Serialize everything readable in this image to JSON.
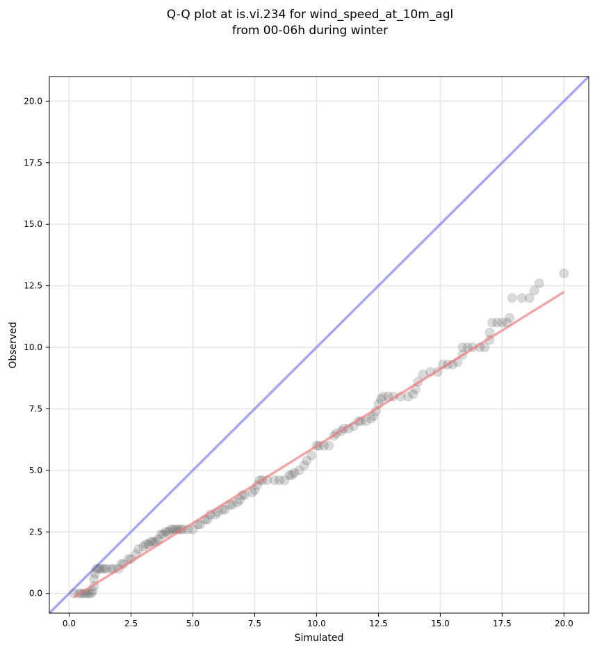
{
  "chart_data": {
    "type": "scatter",
    "title": [
      "Q-Q plot at is.vi.234 for wind_speed_at_10m_agl",
      "from 00-06h during winter"
    ],
    "xlabel": "Simulated",
    "ylabel": "Observed",
    "xlim": [
      -0.8,
      21.0
    ],
    "ylim": [
      -0.8,
      21.0
    ],
    "xticks": [
      0.0,
      2.5,
      5.0,
      7.5,
      10.0,
      12.5,
      15.0,
      17.5,
      20.0
    ],
    "xtick_labels": [
      "0.0",
      "2.5",
      "5.0",
      "7.5",
      "10.0",
      "12.5",
      "15.0",
      "17.5",
      "20.0"
    ],
    "yticks": [
      0.0,
      2.5,
      5.0,
      7.5,
      10.0,
      12.5,
      15.0,
      17.5,
      20.0
    ],
    "ytick_labels": [
      "0.0",
      "2.5",
      "5.0",
      "7.5",
      "10.0",
      "12.5",
      "15.0",
      "17.5",
      "20.0"
    ],
    "grid": true,
    "legend": "none",
    "colors": {
      "points": "#333333",
      "identity_line": "#7777ee",
      "fit_line": "#ee7777",
      "grid": "#e6e6e6",
      "axes": "#000000"
    },
    "identity_line": {
      "x": [
        -0.8,
        21.0
      ],
      "y": [
        -0.8,
        21.0
      ]
    },
    "fit_line": {
      "x": [
        0.2,
        20.0
      ],
      "y": [
        -0.15,
        12.25
      ]
    },
    "points": [
      [
        0.2,
        0.0
      ],
      [
        0.4,
        0.0
      ],
      [
        0.5,
        0.0
      ],
      [
        0.6,
        0.0
      ],
      [
        0.7,
        0.0
      ],
      [
        0.8,
        0.0
      ],
      [
        0.9,
        0.0
      ],
      [
        0.95,
        0.1
      ],
      [
        1.0,
        0.3
      ],
      [
        1.0,
        0.6
      ],
      [
        1.05,
        0.8
      ],
      [
        1.1,
        1.0
      ],
      [
        1.2,
        1.0
      ],
      [
        1.3,
        1.0
      ],
      [
        1.4,
        1.0
      ],
      [
        1.5,
        1.0
      ],
      [
        1.7,
        1.0
      ],
      [
        1.8,
        1.0
      ],
      [
        2.0,
        1.0
      ],
      [
        2.1,
        1.2
      ],
      [
        2.2,
        1.2
      ],
      [
        2.4,
        1.4
      ],
      [
        2.5,
        1.4
      ],
      [
        2.7,
        1.6
      ],
      [
        2.8,
        1.8
      ],
      [
        3.0,
        1.9
      ],
      [
        3.1,
        2.0
      ],
      [
        3.2,
        2.0
      ],
      [
        3.3,
        2.1
      ],
      [
        3.4,
        2.1
      ],
      [
        3.5,
        2.1
      ],
      [
        3.6,
        2.2
      ],
      [
        3.7,
        2.4
      ],
      [
        3.8,
        2.4
      ],
      [
        3.9,
        2.5
      ],
      [
        4.0,
        2.5
      ],
      [
        4.1,
        2.6
      ],
      [
        4.2,
        2.6
      ],
      [
        4.3,
        2.6
      ],
      [
        4.4,
        2.6
      ],
      [
        4.5,
        2.6
      ],
      [
        4.6,
        2.6
      ],
      [
        4.8,
        2.6
      ],
      [
        5.0,
        2.6
      ],
      [
        5.2,
        2.8
      ],
      [
        5.3,
        2.8
      ],
      [
        5.5,
        3.0
      ],
      [
        5.6,
        3.0
      ],
      [
        5.7,
        3.2
      ],
      [
        5.9,
        3.2
      ],
      [
        6.0,
        3.3
      ],
      [
        6.2,
        3.4
      ],
      [
        6.3,
        3.4
      ],
      [
        6.5,
        3.6
      ],
      [
        6.6,
        3.6
      ],
      [
        6.8,
        3.7
      ],
      [
        6.9,
        3.8
      ],
      [
        7.0,
        4.0
      ],
      [
        7.1,
        4.0
      ],
      [
        7.4,
        4.1
      ],
      [
        7.5,
        4.2
      ],
      [
        7.6,
        4.4
      ],
      [
        7.7,
        4.6
      ],
      [
        7.8,
        4.6
      ],
      [
        8.0,
        4.6
      ],
      [
        8.3,
        4.6
      ],
      [
        8.5,
        4.6
      ],
      [
        8.7,
        4.6
      ],
      [
        8.9,
        4.8
      ],
      [
        9.0,
        4.8
      ],
      [
        9.1,
        4.9
      ],
      [
        9.3,
        5.0
      ],
      [
        9.5,
        5.2
      ],
      [
        9.6,
        5.4
      ],
      [
        9.8,
        5.6
      ],
      [
        10.0,
        6.0
      ],
      [
        10.1,
        6.0
      ],
      [
        10.3,
        6.0
      ],
      [
        10.5,
        6.0
      ],
      [
        10.7,
        6.4
      ],
      [
        10.8,
        6.5
      ],
      [
        11.0,
        6.6
      ],
      [
        11.1,
        6.7
      ],
      [
        11.3,
        6.7
      ],
      [
        11.5,
        6.8
      ],
      [
        11.7,
        7.0
      ],
      [
        11.8,
        7.0
      ],
      [
        12.0,
        7.0
      ],
      [
        12.2,
        7.1
      ],
      [
        12.3,
        7.2
      ],
      [
        12.4,
        7.4
      ],
      [
        12.5,
        7.7
      ],
      [
        12.6,
        7.9
      ],
      [
        12.7,
        8.0
      ],
      [
        12.9,
        8.0
      ],
      [
        13.1,
        8.0
      ],
      [
        13.4,
        8.0
      ],
      [
        13.7,
        8.0
      ],
      [
        13.9,
        8.1
      ],
      [
        14.0,
        8.3
      ],
      [
        14.1,
        8.6
      ],
      [
        14.3,
        8.9
      ],
      [
        14.6,
        9.0
      ],
      [
        14.9,
        9.0
      ],
      [
        15.1,
        9.3
      ],
      [
        15.3,
        9.3
      ],
      [
        15.5,
        9.3
      ],
      [
        15.7,
        9.4
      ],
      [
        15.9,
        9.7
      ],
      [
        15.9,
        10.0
      ],
      [
        16.1,
        10.0
      ],
      [
        16.3,
        10.0
      ],
      [
        16.6,
        10.0
      ],
      [
        16.8,
        10.0
      ],
      [
        17.0,
        10.3
      ],
      [
        17.0,
        10.6
      ],
      [
        17.1,
        11.0
      ],
      [
        17.3,
        11.0
      ],
      [
        17.5,
        11.0
      ],
      [
        17.7,
        11.0
      ],
      [
        17.8,
        11.2
      ],
      [
        17.9,
        12.0
      ],
      [
        18.3,
        12.0
      ],
      [
        18.6,
        12.0
      ],
      [
        18.8,
        12.3
      ],
      [
        19.0,
        12.6
      ],
      [
        20.0,
        13.0
      ]
    ]
  }
}
